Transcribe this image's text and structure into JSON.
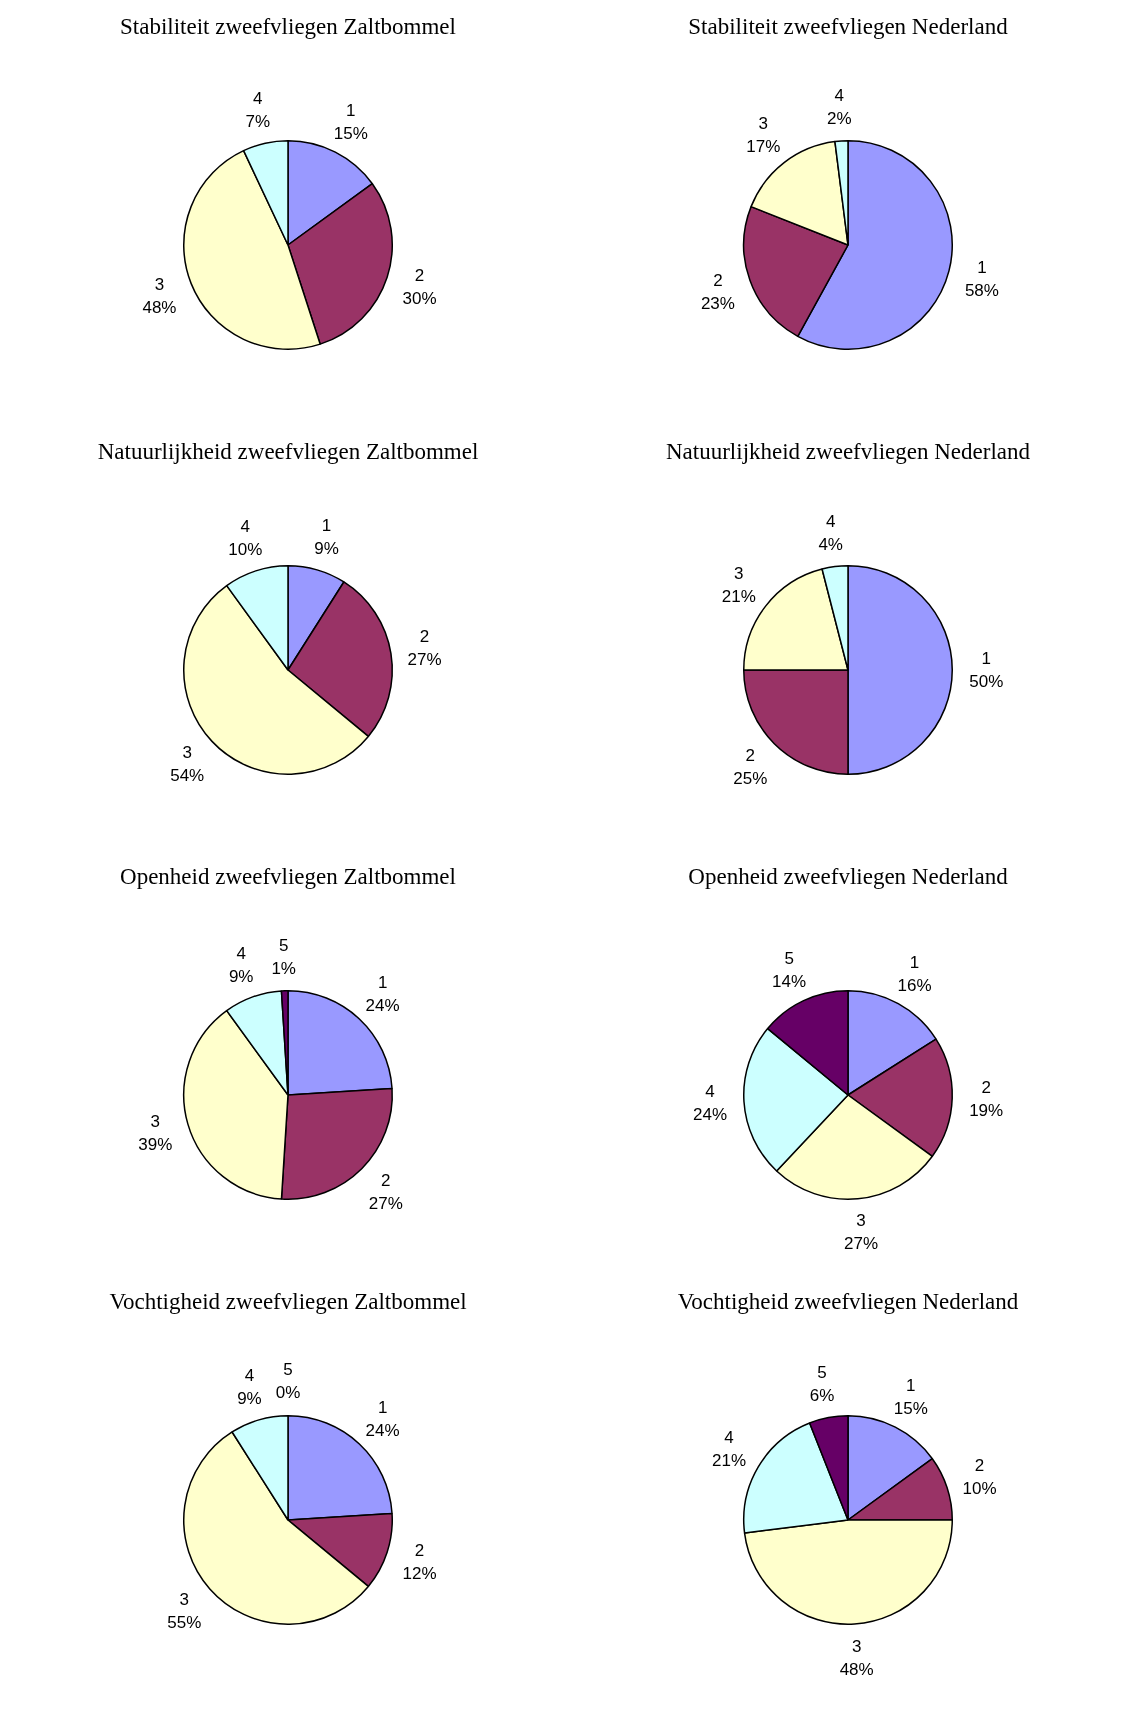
{
  "chart_data": [
    {
      "type": "pie",
      "title": "Stabiliteit zweefvliegen Zaltbommel",
      "categories": [
        "1",
        "2",
        "3",
        "4"
      ],
      "values": [
        15,
        30,
        48,
        7
      ],
      "value_labels": [
        "15%",
        "30%",
        "48%",
        "7%"
      ],
      "colors": [
        "#9999ff",
        "#993366",
        "#ffffcc",
        "#ccffff"
      ]
    },
    {
      "type": "pie",
      "title": "Stabiliteit zweefvliegen Nederland",
      "categories": [
        "1",
        "2",
        "3",
        "4"
      ],
      "values": [
        58,
        23,
        17,
        2
      ],
      "value_labels": [
        "58%",
        "23%",
        "17%",
        "2%"
      ],
      "colors": [
        "#9999ff",
        "#993366",
        "#ffffcc",
        "#ccffff"
      ]
    },
    {
      "type": "pie",
      "title": "Natuurlijkheid zweefvliegen Zaltbommel",
      "categories": [
        "1",
        "2",
        "3",
        "4"
      ],
      "values": [
        9,
        27,
        54,
        10
      ],
      "value_labels": [
        "9%",
        "27%",
        "54%",
        "10%"
      ],
      "colors": [
        "#9999ff",
        "#993366",
        "#ffffcc",
        "#ccffff"
      ]
    },
    {
      "type": "pie",
      "title": "Natuurlijkheid zweefvliegen Nederland",
      "categories": [
        "1",
        "2",
        "3",
        "4"
      ],
      "values": [
        50,
        25,
        21,
        4
      ],
      "value_labels": [
        "50%",
        "25%",
        "21%",
        "4%"
      ],
      "colors": [
        "#9999ff",
        "#993366",
        "#ffffcc",
        "#ccffff"
      ]
    },
    {
      "type": "pie",
      "title": "Openheid zweefvliegen Zaltbommel",
      "categories": [
        "1",
        "2",
        "3",
        "4",
        "5"
      ],
      "values": [
        24,
        27,
        39,
        9,
        1
      ],
      "value_labels": [
        "24%",
        "27%",
        "39%",
        "9%",
        "1%"
      ],
      "colors": [
        "#9999ff",
        "#993366",
        "#ffffcc",
        "#ccffff",
        "#660066"
      ]
    },
    {
      "type": "pie",
      "title": "Openheid zweefvliegen Nederland",
      "categories": [
        "1",
        "2",
        "3",
        "4",
        "5"
      ],
      "values": [
        16,
        19,
        27,
        24,
        14
      ],
      "value_labels": [
        "16%",
        "19%",
        "27%",
        "24%",
        "14%"
      ],
      "colors": [
        "#9999ff",
        "#993366",
        "#ffffcc",
        "#ccffff",
        "#660066"
      ]
    },
    {
      "type": "pie",
      "title": "Vochtigheid zweefvliegen Zaltbommel",
      "categories": [
        "1",
        "2",
        "3",
        "4",
        "5"
      ],
      "values": [
        24,
        12,
        55,
        9,
        0
      ],
      "value_labels": [
        "24%",
        "12%",
        "55%",
        "9%",
        "0%"
      ],
      "colors": [
        "#9999ff",
        "#993366",
        "#ffffcc",
        "#ccffff",
        "#660066"
      ]
    },
    {
      "type": "pie",
      "title": "Vochtigheid zweefvliegen Nederland",
      "categories": [
        "1",
        "2",
        "3",
        "4",
        "5"
      ],
      "values": [
        15,
        10,
        48,
        21,
        6
      ],
      "value_labels": [
        "15%",
        "10%",
        "48%",
        "21%",
        "6%"
      ],
      "colors": [
        "#9999ff",
        "#993366",
        "#ffffcc",
        "#ccffff",
        "#660066"
      ]
    }
  ]
}
